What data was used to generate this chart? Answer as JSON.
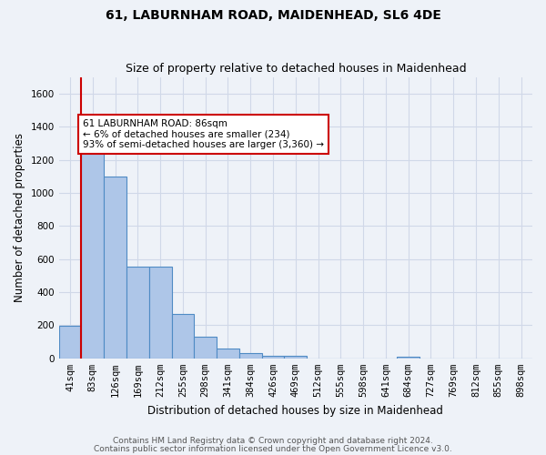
{
  "title": "61, LABURNHAM ROAD, MAIDENHEAD, SL6 4DE",
  "subtitle": "Size of property relative to detached houses in Maidenhead",
  "xlabel": "Distribution of detached houses by size in Maidenhead",
  "ylabel": "Number of detached properties",
  "footer_line1": "Contains HM Land Registry data © Crown copyright and database right 2024.",
  "footer_line2": "Contains public sector information licensed under the Open Government Licence v3.0.",
  "bin_labels": [
    "41sqm",
    "83sqm",
    "126sqm",
    "169sqm",
    "212sqm",
    "255sqm",
    "298sqm",
    "341sqm",
    "384sqm",
    "426sqm",
    "469sqm",
    "512sqm",
    "555sqm",
    "598sqm",
    "641sqm",
    "684sqm",
    "727sqm",
    "769sqm",
    "812sqm",
    "855sqm",
    "898sqm"
  ],
  "bar_values": [
    197,
    1275,
    1100,
    555,
    555,
    270,
    130,
    60,
    33,
    18,
    13,
    0,
    0,
    0,
    0,
    12,
    0,
    0,
    0,
    0,
    0
  ],
  "bar_color": "#aec6e8",
  "bar_edge_color": "#4f8bc4",
  "bar_edge_width": 0.8,
  "red_line_x": 0.5,
  "red_line_color": "#cc0000",
  "annotation_text": "61 LABURNHAM ROAD: 86sqm\n← 6% of detached houses are smaller (234)\n93% of semi-detached houses are larger (3,360) →",
  "annotation_box_color": "white",
  "annotation_box_edge_color": "#cc0000",
  "ylim": [
    0,
    1700
  ],
  "yticks": [
    0,
    200,
    400,
    600,
    800,
    1000,
    1200,
    1400,
    1600
  ],
  "grid_color": "#d0d8e8",
  "background_color": "#eef2f8",
  "title_fontsize": 10,
  "subtitle_fontsize": 9,
  "axis_label_fontsize": 8.5,
  "tick_fontsize": 7.5,
  "annotation_fontsize": 7.5,
  "footer_fontsize": 6.5
}
